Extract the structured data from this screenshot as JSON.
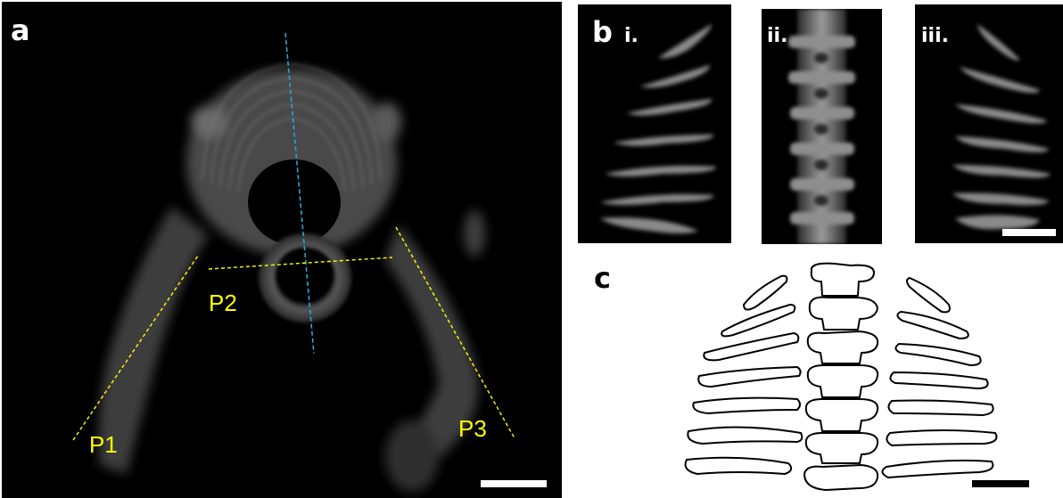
{
  "panel_labels": {
    "a": "a",
    "b": "b",
    "c": "c"
  },
  "panel_a": {
    "annotations": {
      "p1": "P1",
      "p2": "P2",
      "p3": "P3"
    },
    "colors": {
      "angle_lines": "#ffff00",
      "midline": "#29a3d6",
      "scale_bar": "#ffffff"
    }
  },
  "panel_b": {
    "subpanels": {
      "i": "i.",
      "ii": "ii.",
      "iii": "iii."
    },
    "colors": {
      "scale_bar": "#ffffff"
    }
  },
  "panel_c": {
    "colors": {
      "outline": "#000000",
      "scale_bar": "#000000"
    }
  }
}
